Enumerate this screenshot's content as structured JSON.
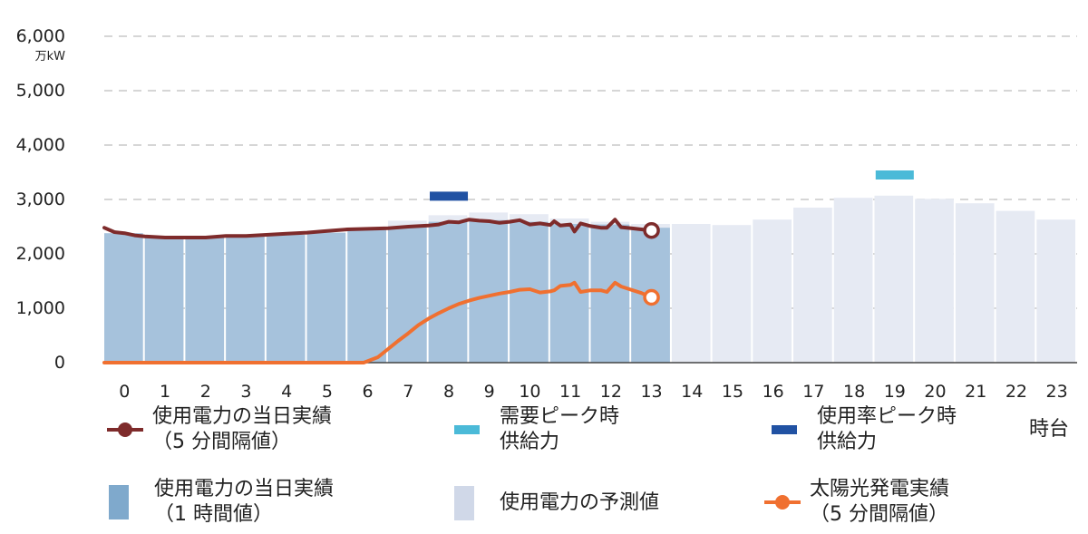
{
  "chart_data": {
    "type": "bar",
    "unit_label": "万kW",
    "x_unit_label": "時台",
    "ylim": [
      0,
      6000
    ],
    "y_ticks": [
      "0",
      "1,000",
      "2,000",
      "3,000",
      "4,000",
      "5,000",
      "6,000"
    ],
    "grid": true,
    "categories": [
      "0",
      "1",
      "2",
      "3",
      "4",
      "5",
      "6",
      "7",
      "8",
      "9",
      "10",
      "11",
      "12",
      "13",
      "14",
      "15",
      "16",
      "17",
      "18",
      "19",
      "20",
      "21",
      "22",
      "23"
    ],
    "series": [
      {
        "name": "使用電力の当日実績\n（1 時間値）",
        "kind": "bar",
        "color": "#a6c2dc",
        "values": [
          2380,
          2300,
          2300,
          2330,
          2350,
          2390,
          2440,
          2500,
          2590,
          2620,
          2590,
          2550,
          2540,
          2480,
          null,
          null,
          null,
          null,
          null,
          null,
          null,
          null,
          null,
          null
        ]
      },
      {
        "name": "使用電力の予測値",
        "kind": "bar",
        "color": "#e6eaf3",
        "values": [
          null,
          null,
          null,
          null,
          null,
          null,
          null,
          2610,
          2710,
          2760,
          2730,
          2650,
          2590,
          2550,
          2550,
          2530,
          2630,
          2850,
          3030,
          3070,
          3010,
          2930,
          2790,
          2630
        ]
      },
      {
        "name": "需要ピーク時\n供給力",
        "kind": "marker",
        "color": "#4bbad8",
        "x": 19,
        "value": 3450
      },
      {
        "name": "使用率ピーク時\n供給力",
        "kind": "marker",
        "color": "#2152a3",
        "x": 8,
        "value": 3060
      },
      {
        "name": "使用電力の当日実績\n（5 分間隔値）",
        "kind": "line",
        "color": "#7e2b2b",
        "x": [
          0,
          0.25,
          0.5,
          0.75,
          1,
          1.5,
          2,
          2.5,
          3,
          3.5,
          4,
          4.5,
          5,
          5.5,
          6,
          6.5,
          7,
          7.5,
          8,
          8.25,
          8.5,
          8.75,
          9,
          9.25,
          9.5,
          9.75,
          10,
          10.25,
          10.5,
          10.75,
          11,
          11.1,
          11.25,
          11.5,
          11.6,
          11.75,
          12,
          12.25,
          12.4,
          12.6,
          12.75,
          13,
          13.25,
          13.5
        ],
        "values": [
          2480,
          2400,
          2380,
          2340,
          2320,
          2300,
          2300,
          2300,
          2330,
          2330,
          2350,
          2370,
          2390,
          2420,
          2450,
          2460,
          2470,
          2500,
          2520,
          2540,
          2590,
          2580,
          2630,
          2610,
          2600,
          2570,
          2590,
          2620,
          2540,
          2560,
          2530,
          2600,
          2520,
          2540,
          2410,
          2560,
          2510,
          2480,
          2480,
          2630,
          2490,
          2470,
          2450,
          2430
        ]
      },
      {
        "name": "太陽光発電実績\n（5 分間隔値）",
        "kind": "line",
        "color": "#f07030",
        "x": [
          0,
          1,
          2,
          3,
          4,
          5,
          6,
          6.4,
          6.75,
          7,
          7.25,
          7.5,
          7.75,
          8,
          8.25,
          8.5,
          8.75,
          9,
          9.25,
          9.5,
          9.75,
          10,
          10.25,
          10.5,
          10.75,
          11,
          11.1,
          11.25,
          11.5,
          11.6,
          11.75,
          12,
          12.25,
          12.4,
          12.6,
          12.75,
          13,
          13.25,
          13.5
        ],
        "values": [
          0,
          0,
          0,
          0,
          0,
          0,
          0,
          0,
          100,
          250,
          400,
          540,
          690,
          810,
          910,
          1000,
          1080,
          1140,
          1190,
          1230,
          1270,
          1300,
          1340,
          1350,
          1290,
          1310,
          1330,
          1410,
          1430,
          1470,
          1300,
          1330,
          1330,
          1300,
          1470,
          1400,
          1340,
          1280,
          1200
        ]
      }
    ]
  }
}
